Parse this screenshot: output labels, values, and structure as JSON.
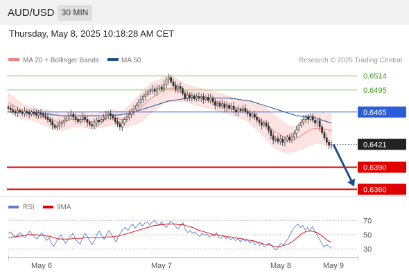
{
  "header": {
    "symbol": "AUD/USD",
    "timeframe": "30 MIN",
    "timestamp": "Thursday, May 8, 2025 10:18:28 AM CET"
  },
  "legend": {
    "items": [
      {
        "label": "MA 20 + Bollinger Bands",
        "color": "#f08080"
      },
      {
        "label": "MA 50",
        "color": "#1f4e8c"
      }
    ],
    "credit": "Research © 2025 Trading Central"
  },
  "rsi_legend": {
    "items": [
      {
        "label": "RSI",
        "color": "#5b7fd4"
      },
      {
        "label": "9MA",
        "color": "#e00000"
      }
    ]
  },
  "chart_data": {
    "type": "candlestick",
    "ylim": [
      0.635,
      0.6525
    ],
    "x_ticks": [
      "May 6",
      "May 7",
      "May 8",
      "May 9"
    ],
    "levels": [
      {
        "value": 0.6514,
        "label": "0.6514",
        "color": "#8fcc6a",
        "style": "thin"
      },
      {
        "value": 0.6495,
        "label": "0.6495",
        "color": "#8fcc6a",
        "style": "thin"
      },
      {
        "value": 0.6465,
        "label": "0.6465",
        "color": "#2a5fd8",
        "style": "thin"
      },
      {
        "value": 0.6421,
        "label": "0.6421",
        "color": "#222222",
        "style": "current"
      },
      {
        "value": 0.639,
        "label": "0.6390",
        "color": "#e00000",
        "style": "thick"
      },
      {
        "value": 0.636,
        "label": "0.6360",
        "color": "#e00000",
        "style": "thick"
      }
    ],
    "closes": [
      0.647,
      0.6468,
      0.6466,
      0.6464,
      0.6467,
      0.6465,
      0.6463,
      0.6466,
      0.6464,
      0.6462,
      0.6465,
      0.6463,
      0.6461,
      0.6464,
      0.6462,
      0.646,
      0.6458,
      0.6455,
      0.6452,
      0.6447,
      0.6444,
      0.6446,
      0.6449,
      0.6451,
      0.6454,
      0.6457,
      0.646,
      0.6462,
      0.6458,
      0.6455,
      0.6452,
      0.6455,
      0.6458,
      0.6455,
      0.6451,
      0.6448,
      0.6446,
      0.645,
      0.6454,
      0.6452,
      0.6455,
      0.6458,
      0.6461,
      0.6463,
      0.646,
      0.6457,
      0.6452,
      0.6449,
      0.6445,
      0.645,
      0.6455,
      0.6458,
      0.6462,
      0.6466,
      0.6469,
      0.6474,
      0.6478,
      0.6482,
      0.6486,
      0.6489,
      0.6492,
      0.6494,
      0.6496,
      0.6493,
      0.6497,
      0.6499,
      0.6496,
      0.6502,
      0.6509,
      0.6512,
      0.6506,
      0.6501,
      0.6496,
      0.65,
      0.6497,
      0.649,
      0.6484,
      0.6488,
      0.6485,
      0.6487,
      0.6483,
      0.6486,
      0.6484,
      0.6486,
      0.6482,
      0.6485,
      0.6481,
      0.6484,
      0.6479,
      0.6474,
      0.6477,
      0.6473,
      0.6476,
      0.6471,
      0.6474,
      0.647,
      0.6473,
      0.6468,
      0.6465,
      0.6469,
      0.6467,
      0.647,
      0.6466,
      0.6463,
      0.6459,
      0.6462,
      0.6458,
      0.6454,
      0.6451,
      0.6447,
      0.645,
      0.6446,
      0.644,
      0.6433,
      0.6427,
      0.6429,
      0.6425,
      0.6428,
      0.6424,
      0.6427,
      0.6431,
      0.6427,
      0.6431,
      0.6436,
      0.6441,
      0.6447,
      0.6451,
      0.6455,
      0.6458,
      0.6455,
      0.6459,
      0.6454,
      0.645,
      0.6453,
      0.6445,
      0.6437,
      0.643,
      0.6424,
      0.642,
      0.6421
    ],
    "ma20": [
      0.6478,
      0.6476,
      0.6474,
      0.6472,
      0.647,
      0.6468,
      0.6466,
      0.6465,
      0.6464,
      0.6463,
      0.6463,
      0.6462,
      0.6461,
      0.646,
      0.6459,
      0.6458,
      0.6457,
      0.6456,
      0.6455,
      0.6454,
      0.6453,
      0.6452,
      0.6451,
      0.6451,
      0.6452,
      0.6453,
      0.6454,
      0.6455,
      0.6455,
      0.6455,
      0.6455,
      0.6455,
      0.6455,
      0.6454,
      0.6453,
      0.6452,
      0.6452,
      0.6452,
      0.6453,
      0.6454,
      0.6454,
      0.6454,
      0.6455,
      0.6456,
      0.6456,
      0.6457,
      0.6457,
      0.6456,
      0.6455,
      0.6455,
      0.6456,
      0.6458,
      0.646,
      0.6462,
      0.6464,
      0.6466,
      0.6468,
      0.6471,
      0.6474,
      0.6477,
      0.648,
      0.6483,
      0.6485,
      0.6487,
      0.6489,
      0.6491,
      0.6493,
      0.6495,
      0.6496,
      0.6497,
      0.6497,
      0.6496,
      0.6495,
      0.6494,
      0.6493,
      0.6492,
      0.6491,
      0.649,
      0.6489,
      0.6488,
      0.6487,
      0.6486,
      0.6485,
      0.6485,
      0.6484,
      0.6483,
      0.6483,
      0.6482,
      0.6481,
      0.648,
      0.6479,
      0.6478,
      0.6477,
      0.6476,
      0.6475,
      0.6474,
      0.6473,
      0.6472,
      0.6471,
      0.647,
      0.6469,
      0.6468,
      0.6467,
      0.6466,
      0.6464,
      0.6462,
      0.646,
      0.6458,
      0.6456,
      0.6454,
      0.6452,
      0.6449,
      0.6446,
      0.6443,
      0.644,
      0.6438,
      0.6436,
      0.6434,
      0.6432,
      0.643,
      0.6429,
      0.6428,
      0.6428,
      0.6428,
      0.6429,
      0.6431,
      0.6433,
      0.6435,
      0.6437,
      0.6439,
      0.6441,
      0.6442,
      0.6443,
      0.6443,
      0.6443,
      0.6443,
      0.6442,
      0.6441,
      0.644,
      0.644
    ],
    "ma50": [
      0.6465,
      0.6465,
      0.6465,
      0.6465,
      0.6465,
      0.6465,
      0.6465,
      0.6465,
      0.6465,
      0.6464,
      0.6464,
      0.6464,
      0.6464,
      0.6463,
      0.6463,
      0.6463,
      0.6462,
      0.6462,
      0.6462,
      0.6461,
      0.6461,
      0.6461,
      0.646,
      0.646,
      0.646,
      0.646,
      0.646,
      0.646,
      0.646,
      0.646,
      0.646,
      0.646,
      0.646,
      0.646,
      0.646,
      0.646,
      0.646,
      0.646,
      0.646,
      0.646,
      0.646,
      0.646,
      0.646,
      0.6461,
      0.6461,
      0.6461,
      0.6461,
      0.6461,
      0.6461,
      0.6462,
      0.6462,
      0.6463,
      0.6463,
      0.6464,
      0.6465,
      0.6466,
      0.6467,
      0.6468,
      0.6469,
      0.647,
      0.6471,
      0.6472,
      0.6473,
      0.6474,
      0.6475,
      0.6476,
      0.6477,
      0.6478,
      0.6479,
      0.648,
      0.648,
      0.6481,
      0.6481,
      0.6482,
      0.6482,
      0.6483,
      0.6483,
      0.6484,
      0.6484,
      0.6484,
      0.6484,
      0.6484,
      0.6484,
      0.6484,
      0.6484,
      0.6484,
      0.6484,
      0.6484,
      0.6484,
      0.6484,
      0.6484,
      0.6484,
      0.6484,
      0.6484,
      0.6484,
      0.6484,
      0.6483,
      0.6483,
      0.6483,
      0.6482,
      0.6482,
      0.6481,
      0.6481,
      0.648,
      0.648,
      0.6479,
      0.6478,
      0.6477,
      0.6476,
      0.6475,
      0.6474,
      0.6473,
      0.6472,
      0.6471,
      0.647,
      0.6469,
      0.6468,
      0.6467,
      0.6466,
      0.6465,
      0.6464,
      0.6463,
      0.6462,
      0.6461,
      0.646,
      0.646,
      0.6459,
      0.6459,
      0.6459,
      0.6459,
      0.6458,
      0.6458,
      0.6457,
      0.6456,
      0.6455,
      0.6454,
      0.6453,
      0.6452,
      0.6451,
      0.645
    ],
    "bb_halfwidth": [
      0.0012,
      0.0012,
      0.0012,
      0.0011,
      0.0011,
      0.001,
      0.001,
      0.0009,
      0.0009,
      0.0009,
      0.0009,
      0.0009,
      0.0009,
      0.0009,
      0.001,
      0.001,
      0.001,
      0.0011,
      0.0011,
      0.0012,
      0.0012,
      0.0012,
      0.0012,
      0.0012,
      0.0011,
      0.0011,
      0.0011,
      0.001,
      0.001,
      0.001,
      0.001,
      0.001,
      0.001,
      0.001,
      0.001,
      0.001,
      0.001,
      0.001,
      0.001,
      0.001,
      0.001,
      0.001,
      0.001,
      0.001,
      0.001,
      0.001,
      0.001,
      0.001,
      0.0011,
      0.0011,
      0.0012,
      0.0013,
      0.0014,
      0.0015,
      0.0016,
      0.0017,
      0.0018,
      0.0019,
      0.002,
      0.002,
      0.002,
      0.002,
      0.002,
      0.0019,
      0.0019,
      0.0018,
      0.0018,
      0.0018,
      0.0018,
      0.0018,
      0.0018,
      0.0017,
      0.0016,
      0.0015,
      0.0014,
      0.0013,
      0.0012,
      0.0012,
      0.0012,
      0.0012,
      0.0012,
      0.0012,
      0.0012,
      0.0012,
      0.0012,
      0.0012,
      0.0012,
      0.0012,
      0.0012,
      0.0012,
      0.0012,
      0.0012,
      0.0012,
      0.0012,
      0.0012,
      0.0012,
      0.0012,
      0.0012,
      0.0012,
      0.0012,
      0.0012,
      0.0012,
      0.0013,
      0.0013,
      0.0014,
      0.0015,
      0.0016,
      0.0017,
      0.0018,
      0.0019,
      0.002,
      0.0021,
      0.0022,
      0.0022,
      0.0022,
      0.0022,
      0.0022,
      0.0021,
      0.0021,
      0.002,
      0.0019,
      0.0018,
      0.0017,
      0.0017,
      0.0017,
      0.0018,
      0.0019,
      0.002,
      0.002,
      0.0021,
      0.0021,
      0.0021,
      0.0021,
      0.002,
      0.002,
      0.0021,
      0.0022,
      0.0022,
      0.0023,
      0.0023
    ],
    "projection": {
      "from": 0.6421,
      "to": 0.636
    },
    "rsi": {
      "levels": [
        30,
        50,
        70
      ],
      "ylim": [
        22,
        78
      ],
      "values": [
        52,
        54,
        49,
        47,
        50,
        53,
        48,
        46,
        51,
        55,
        50,
        47,
        44,
        49,
        53,
        47,
        42,
        46,
        38,
        34,
        40,
        45,
        50,
        43,
        38,
        44,
        48,
        52,
        44,
        40,
        37,
        45,
        52,
        48,
        42,
        36,
        42,
        50,
        55,
        49,
        44,
        50,
        56,
        51,
        46,
        40,
        47,
        53,
        58,
        60,
        56,
        62,
        65,
        59,
        63,
        67,
        62,
        66,
        68,
        64,
        67,
        70,
        66,
        63,
        68,
        64,
        60,
        65,
        69,
        66,
        61,
        58,
        63,
        67,
        57,
        53,
        56,
        52,
        54,
        50,
        48,
        52,
        49,
        51,
        47,
        50,
        48,
        53,
        46,
        45,
        49,
        44,
        47,
        43,
        46,
        42,
        45,
        40,
        44,
        41,
        43,
        38,
        42,
        36,
        40,
        35,
        38,
        33,
        36,
        38,
        35,
        31,
        29,
        34,
        38,
        36,
        40,
        45,
        52,
        58,
        62,
        65,
        60,
        63,
        57,
        60,
        55,
        61,
        56,
        50,
        44,
        38,
        33,
        36,
        34,
        31
      ],
      "ma9": [
        46,
        46,
        47,
        47,
        48,
        48,
        49,
        49,
        50,
        50,
        50,
        50,
        50,
        49,
        49,
        49,
        48,
        48,
        47,
        46,
        45,
        44,
        44,
        44,
        44,
        44,
        44,
        45,
        45,
        45,
        45,
        45,
        46,
        46,
        46,
        46,
        46,
        46,
        46,
        46,
        46,
        47,
        47,
        47,
        47,
        48,
        48,
        49,
        50,
        51,
        52,
        53,
        54,
        55,
        56,
        57,
        58,
        59,
        60,
        61,
        62,
        63,
        63,
        64,
        64,
        64,
        65,
        65,
        65,
        65,
        65,
        64,
        64,
        64,
        63,
        62,
        61,
        60,
        59,
        57,
        56,
        55,
        54,
        53,
        52,
        51,
        50,
        50,
        49,
        49,
        48,
        48,
        47,
        47,
        46,
        46,
        45,
        45,
        44,
        44,
        43,
        42,
        42,
        41,
        40,
        39,
        38,
        37,
        36,
        36,
        35,
        34,
        34,
        33,
        34,
        35,
        36,
        37,
        39,
        41,
        44,
        47,
        50,
        52,
        54,
        55,
        55,
        55,
        54,
        53,
        51,
        49,
        46,
        43,
        41,
        40
      ]
    }
  }
}
